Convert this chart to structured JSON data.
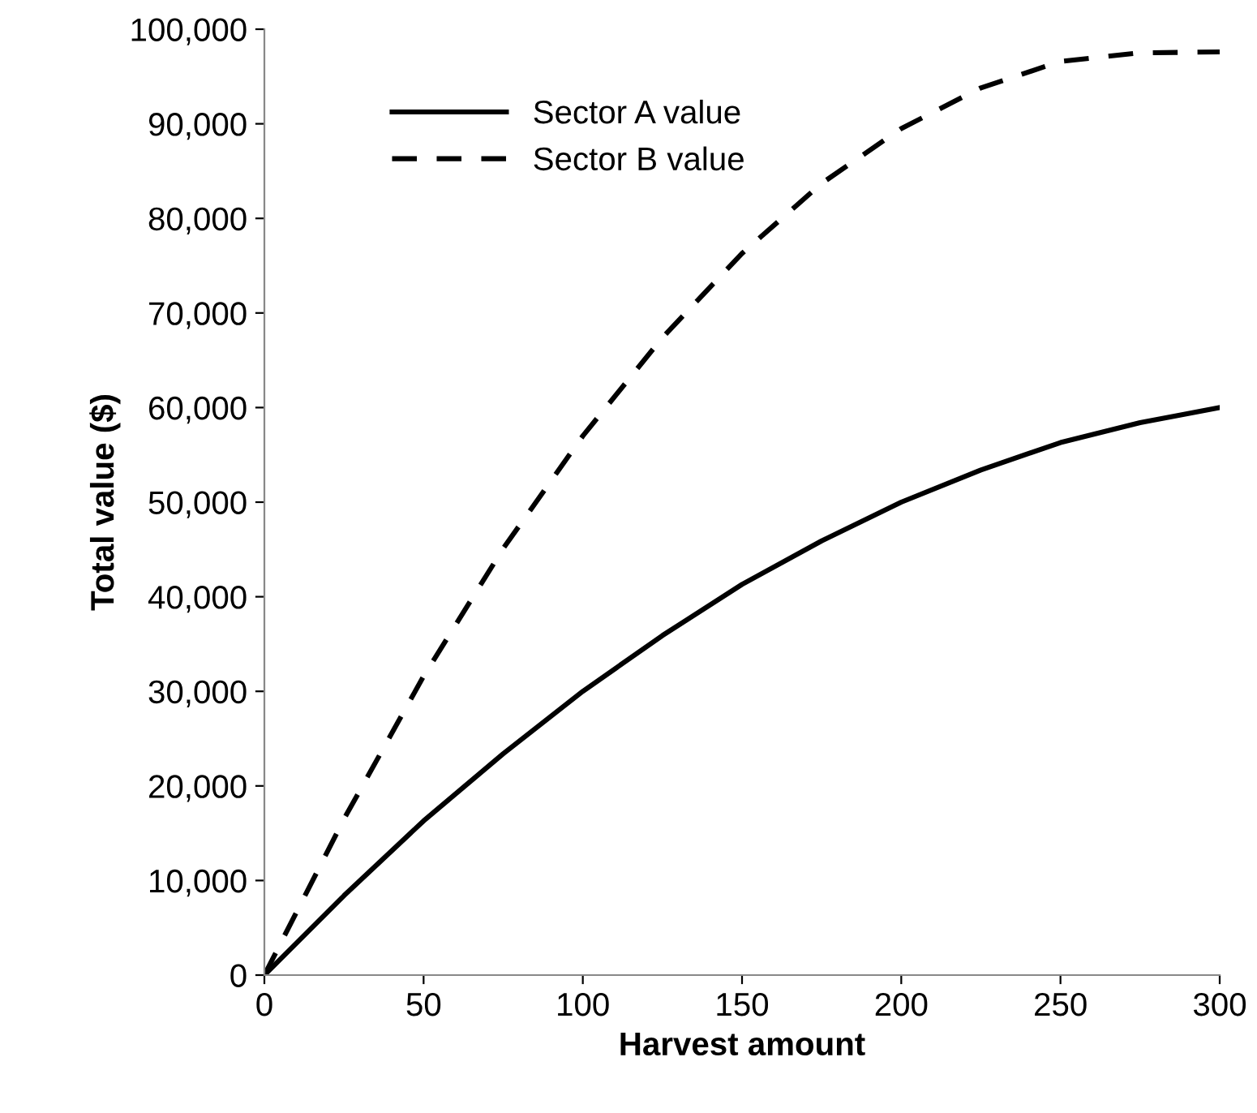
{
  "chart_data": {
    "type": "line",
    "xlabel": "Harvest amount",
    "ylabel": "Total value ($)",
    "x": [
      0,
      25,
      50,
      75,
      100,
      125,
      150,
      175,
      200,
      225,
      250,
      275,
      300
    ],
    "series": [
      {
        "name": "Sector A value",
        "color": "#000000",
        "line_style": "solid",
        "values": [
          0,
          8400,
          16300,
          23400,
          30000,
          35900,
          41300,
          45900,
          50000,
          53400,
          56300,
          58400,
          60000
        ]
      },
      {
        "name": "Sector B value",
        "color": "#000000",
        "line_style": "dashed",
        "values": [
          0,
          16500,
          31600,
          45100,
          57000,
          67400,
          76300,
          83700,
          89500,
          93800,
          96600,
          97500,
          97600
        ]
      }
    ],
    "xlim": [
      0,
      300
    ],
    "xticks": [
      0,
      50,
      100,
      150,
      200,
      250,
      300
    ],
    "ylim": [
      0,
      100000
    ],
    "yticks": [
      {
        "value": 0,
        "label": "0"
      },
      {
        "value": 10000,
        "label": "10,000"
      },
      {
        "value": 20000,
        "label": "20,000"
      },
      {
        "value": 30000,
        "label": "30,000"
      },
      {
        "value": 40000,
        "label": "40,000"
      },
      {
        "value": 50000,
        "label": "50,000"
      },
      {
        "value": 60000,
        "label": "60,000"
      },
      {
        "value": 70000,
        "label": "70,000"
      },
      {
        "value": 80000,
        "label": "80,000"
      },
      {
        "value": 90000,
        "label": "90,000"
      },
      {
        "value": 100000,
        "label": "100,000"
      }
    ],
    "grid": false,
    "legend": "top left",
    "marker": "none"
  }
}
